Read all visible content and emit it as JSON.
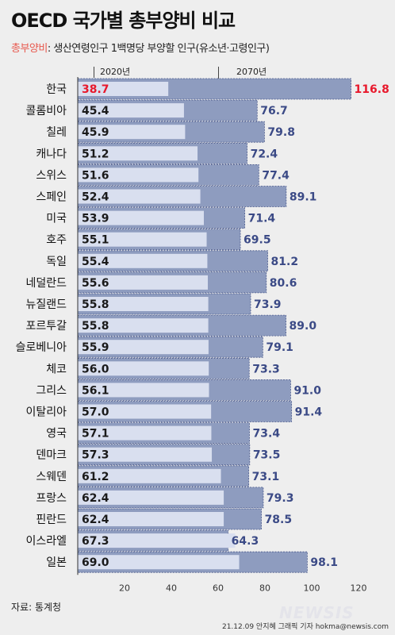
{
  "header": {
    "title": "OECD 국가별 총부양비 비교",
    "subtitle_highlight": "총부양비",
    "subtitle_rest": ": 생산연령인구 1백명당 부양할 인구(유소년·고령인구)"
  },
  "legend": {
    "y2020": "2020년",
    "y2070": "2070년"
  },
  "colors": {
    "bar2070": "#8e9cbf",
    "bar2020": "#d9dfef",
    "label2070": "#3b4a86",
    "highlight": "#e8192c",
    "subtitle_highlight": "#e8574c"
  },
  "chart_data": {
    "type": "bar",
    "orientation": "horizontal",
    "title": "OECD 국가별 총부양비 비교",
    "categories": [
      "한국",
      "콜롬비아",
      "칠레",
      "캐나다",
      "스위스",
      "스페인",
      "미국",
      "호주",
      "독일",
      "네덜란드",
      "뉴질랜드",
      "포르투갈",
      "슬로베니아",
      "체코",
      "그리스",
      "이탈리아",
      "영국",
      "덴마크",
      "스웨덴",
      "프랑스",
      "핀란드",
      "이스라엘",
      "일본"
    ],
    "series": [
      {
        "name": "2020년",
        "values": [
          38.7,
          45.4,
          45.9,
          51.2,
          51.6,
          52.4,
          53.9,
          55.1,
          55.4,
          55.6,
          55.8,
          55.8,
          55.9,
          56.0,
          56.1,
          57.0,
          57.1,
          57.3,
          61.2,
          62.4,
          62.4,
          67.3,
          69.0
        ]
      },
      {
        "name": "2070년",
        "values": [
          116.8,
          76.7,
          79.8,
          72.4,
          77.4,
          89.1,
          71.4,
          69.5,
          81.2,
          80.6,
          73.9,
          89.0,
          79.1,
          73.3,
          91.0,
          91.4,
          73.4,
          73.5,
          73.1,
          79.3,
          78.5,
          64.3,
          98.1
        ]
      }
    ],
    "highlight_category": "한국",
    "xlim": [
      0,
      120
    ],
    "xticks": [
      20,
      40,
      60,
      80,
      100,
      120
    ],
    "grid": false
  },
  "footer": {
    "source": "자료: 통계청",
    "logo": "NEWSIS",
    "credit": "21.12.09 안지혜 그래픽 기자 hokma@newsis.com"
  }
}
